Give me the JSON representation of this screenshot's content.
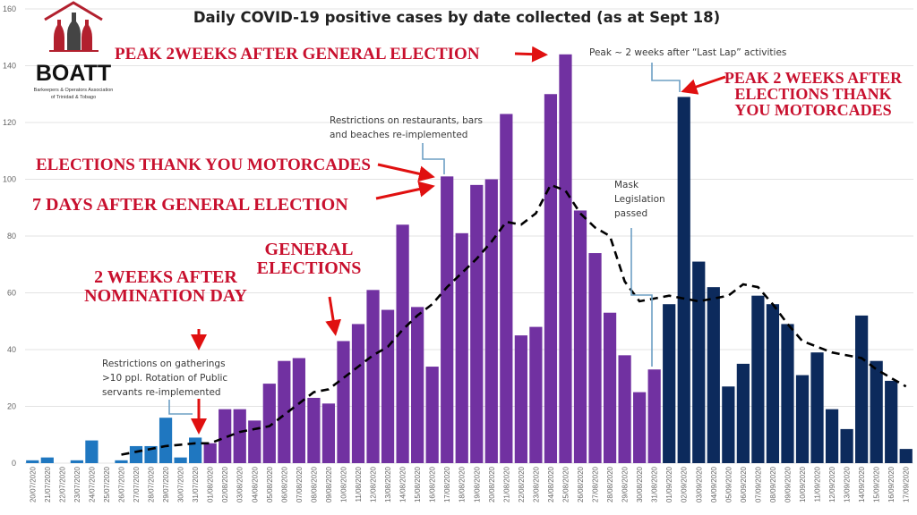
{
  "chart_data": {
    "type": "bar",
    "title": "Daily COVID-19 positive cases by date collected (as at Sept 18)",
    "xlabel": "",
    "ylabel": "",
    "ylim": [
      0,
      160
    ],
    "yticks": [
      0,
      20,
      40,
      60,
      80,
      100,
      120,
      140,
      160
    ],
    "grid": true,
    "categories": [
      "20/07/2020",
      "21/07/2020",
      "22/07/2020",
      "23/07/2020",
      "24/07/2020",
      "25/07/2020",
      "26/07/2020",
      "27/07/2020",
      "28/07/2020",
      "29/07/2020",
      "30/07/2020",
      "31/07/2020",
      "01/08/2020",
      "02/08/2020",
      "03/08/2020",
      "04/08/2020",
      "05/08/2020",
      "06/08/2020",
      "07/08/2020",
      "08/08/2020",
      "09/08/2020",
      "10/08/2020",
      "11/08/2020",
      "12/08/2020",
      "13/08/2020",
      "14/08/2020",
      "15/08/2020",
      "16/08/2020",
      "17/08/2020",
      "18/08/2020",
      "19/08/2020",
      "20/08/2020",
      "21/08/2020",
      "22/08/2020",
      "23/08/2020",
      "24/08/2020",
      "25/08/2020",
      "26/08/2020",
      "27/08/2020",
      "28/08/2020",
      "29/08/2020",
      "30/08/2020",
      "31/08/2020",
      "01/09/2020",
      "02/09/2020",
      "03/09/2020",
      "04/09/2020",
      "05/09/2020",
      "06/09/2020",
      "07/09/2020",
      "08/09/2020",
      "09/09/2020",
      "10/09/2020",
      "11/09/2020",
      "12/09/2020",
      "13/09/2020",
      "14/09/2020",
      "15/09/2020",
      "16/09/2020",
      "17/09/2020"
    ],
    "values": [
      1,
      2,
      0,
      1,
      8,
      0,
      1,
      6,
      6,
      16,
      2,
      9,
      7,
      19,
      19,
      15,
      28,
      36,
      37,
      23,
      21,
      43,
      49,
      61,
      54,
      84,
      55,
      34,
      101,
      81,
      98,
      100,
      123,
      45,
      48,
      130,
      144,
      89,
      74,
      53,
      38,
      25,
      33,
      56,
      129,
      71,
      62,
      27,
      35,
      59,
      56,
      49,
      31,
      39,
      19,
      12,
      52,
      36,
      29,
      5
    ],
    "moving_average": {
      "start_index": 6,
      "style": "dashed",
      "values": [
        3,
        4,
        5,
        6,
        6.5,
        7,
        7,
        9,
        11,
        12,
        13,
        17,
        21,
        25,
        26,
        30,
        34,
        38,
        41,
        47,
        52,
        56,
        62,
        67,
        72,
        78,
        85,
        84,
        88,
        98,
        96,
        88,
        83,
        80,
        64,
        57,
        58,
        59,
        58,
        57,
        58,
        59,
        63,
        62,
        56,
        49,
        43,
        41,
        39,
        38,
        37,
        33,
        30,
        27
      ]
    },
    "color_groups": [
      {
        "from": 0,
        "to": 11,
        "color": "#1f77c0"
      },
      {
        "from": 12,
        "to": 42,
        "color": "#7131a1"
      },
      {
        "from": 43,
        "to": 59,
        "color": "#0c2a5c"
      }
    ],
    "annotations": {
      "peak_general": "PEAK 2WEEKS AFTER GENERAL ELECTION",
      "peak_right": [
        "PEAK 2 WEEKS AFTER",
        "ELECTIONS THANK",
        "YOU MOTORCADES"
      ],
      "motorcades": "ELECTIONS THANK YOU MOTORCADES",
      "seven_days": "7 DAYS AFTER GENERAL ELECTION",
      "general": [
        "GENERAL",
        "ELECTIONS"
      ],
      "nomination": [
        "2 WEEKS AFTER",
        "NOMINATION DAY"
      ],
      "last_lap": "Peak ~ 2 weeks after “Last Lap” activities",
      "restaurants": [
        "Restrictions on restaurants, bars",
        "and beaches re-implemented"
      ],
      "mask": [
        "Mask",
        "Legislation",
        "passed"
      ],
      "gatherings": [
        "Restrictions on gatherings",
        ">10 ppl. Rotation of Public",
        "servants re-implemented"
      ]
    },
    "annotation_color": "#c8102e"
  },
  "logo": {
    "name": "BOATT",
    "subtitle": [
      "Barkeepers & Operators Association",
      "of Trinidad & Tobago"
    ]
  }
}
